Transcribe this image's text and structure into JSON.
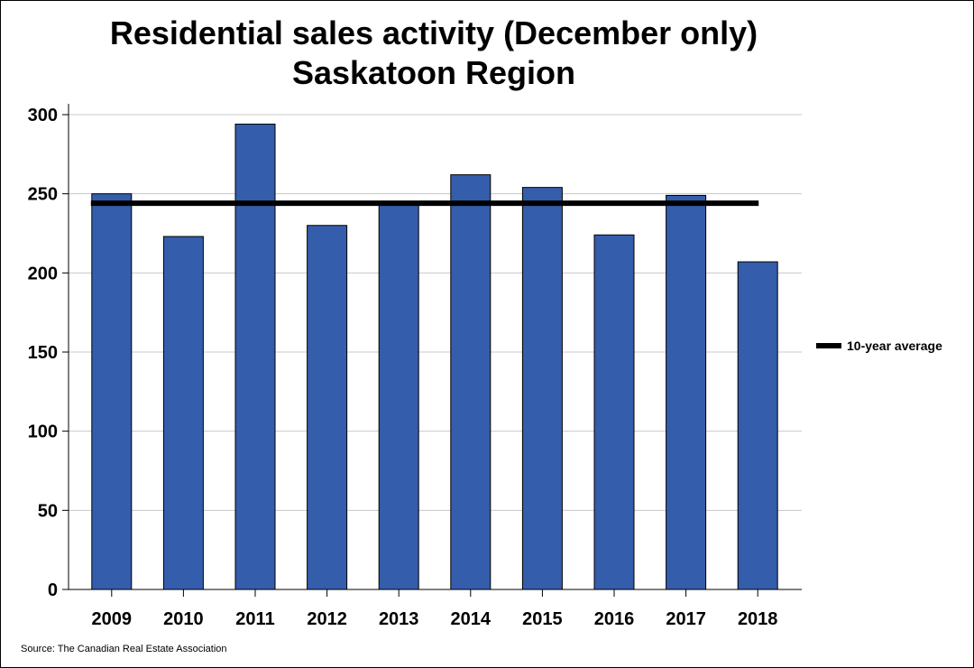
{
  "chart_data": {
    "type": "bar",
    "title": "Residential sales activity (December only)",
    "subtitle": "Saskatoon Region",
    "categories": [
      "2009",
      "2010",
      "2011",
      "2012",
      "2013",
      "2014",
      "2015",
      "2016",
      "2017",
      "2018"
    ],
    "series": [
      {
        "values": [
          250,
          223,
          294,
          230,
          244,
          262,
          254,
          224,
          249,
          207
        ],
        "color": "#345DAB"
      }
    ],
    "reference_line": {
      "name": "10-year average",
      "value": 244,
      "color": "#000000"
    },
    "ylim": [
      0,
      300
    ],
    "yticks": [
      0,
      50,
      100,
      150,
      200,
      250,
      300
    ],
    "xlabel": "",
    "ylabel": "",
    "grid": true,
    "legend_position": "right"
  },
  "source": "Source: The Canadian Real Estate Association"
}
